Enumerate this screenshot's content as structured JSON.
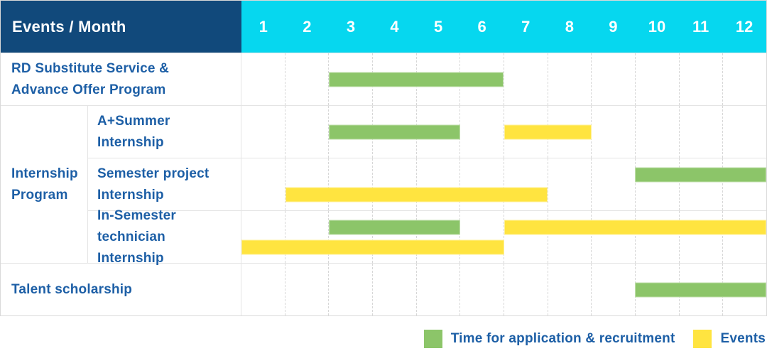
{
  "header": {
    "title": "Events / Month"
  },
  "months": [
    "1",
    "2",
    "3",
    "4",
    "5",
    "6",
    "7",
    "8",
    "9",
    "10",
    "11",
    "12"
  ],
  "colors": {
    "header_bg": "#11497B",
    "months_bg": "#06D7EF",
    "label_text": "#1D5FA6",
    "application_bar": "#8CC569",
    "events_bar": "#FFE440"
  },
  "groups": [
    {
      "id": "internship-program",
      "label_lines": [
        "Internship",
        "Program"
      ]
    }
  ],
  "rows": [
    {
      "id": "rd-substitute-advance-offer",
      "group": null,
      "label_lines": [
        "RD Substitute Service &",
        "Advance Offer Program"
      ],
      "bars": [
        {
          "type": "application",
          "start": 3,
          "end": 6,
          "lane": "center"
        }
      ]
    },
    {
      "id": "a-plus-summer-internship",
      "group": "internship-program",
      "label_lines": [
        "A+Summer",
        "Internship"
      ],
      "bars": [
        {
          "type": "application",
          "start": 3,
          "end": 5,
          "lane": "center"
        },
        {
          "type": "events",
          "start": 7,
          "end": 8,
          "lane": "center"
        }
      ]
    },
    {
      "id": "semester-project-internship",
      "group": "internship-program",
      "label_lines": [
        "Semester project",
        "Internship"
      ],
      "bars": [
        {
          "type": "application",
          "start": 10,
          "end": 12,
          "lane": "top"
        },
        {
          "type": "events",
          "start": 2,
          "end": 7,
          "lane": "bottom"
        }
      ]
    },
    {
      "id": "in-semester-technician-internship",
      "group": "internship-program",
      "label_lines": [
        "In-Semester",
        "technician Internship"
      ],
      "bars": [
        {
          "type": "application",
          "start": 3,
          "end": 5,
          "lane": "top"
        },
        {
          "type": "events",
          "start": 7,
          "end": 12,
          "lane": "top"
        },
        {
          "type": "events",
          "start": 1,
          "end": 6,
          "lane": "bottom"
        }
      ]
    },
    {
      "id": "talent-scholarship",
      "group": null,
      "label_lines": [
        "Talent scholarship"
      ],
      "bars": [
        {
          "type": "application",
          "start": 10,
          "end": 12,
          "lane": "center"
        }
      ]
    }
  ],
  "legend": [
    {
      "key": "application",
      "label": "Time for application & recruitment",
      "color": "#8CC569"
    },
    {
      "key": "events",
      "label": "Events",
      "color": "#FFE440"
    }
  ],
  "chart_data": {
    "type": "bar",
    "subtype": "gantt-timeline",
    "title": "Events / Month",
    "x": {
      "label": "Month",
      "ticks": [
        1,
        2,
        3,
        4,
        5,
        6,
        7,
        8,
        9,
        10,
        11,
        12
      ],
      "range": [
        1,
        12
      ]
    },
    "grid": "dashed-vertical-month-lines",
    "legend_position": "bottom-right",
    "series_meaning": "inclusive month ranges [start_month, end_month]",
    "rows": [
      {
        "event": "RD Substitute Service & Advance Offer Program",
        "time_for_application_and_recruitment": [
          [
            3,
            6
          ]
        ],
        "events": []
      },
      {
        "event": "Internship Program - A+Summer Internship",
        "time_for_application_and_recruitment": [
          [
            3,
            5
          ]
        ],
        "events": [
          [
            7,
            8
          ]
        ]
      },
      {
        "event": "Internship Program - Semester project Internship",
        "time_for_application_and_recruitment": [
          [
            10,
            12
          ]
        ],
        "events": [
          [
            2,
            7
          ]
        ]
      },
      {
        "event": "Internship Program - In-Semester technician Internship",
        "time_for_application_and_recruitment": [
          [
            3,
            5
          ]
        ],
        "events": [
          [
            1,
            6
          ],
          [
            7,
            12
          ]
        ]
      },
      {
        "event": "Talent scholarship",
        "time_for_application_and_recruitment": [
          [
            10,
            12
          ]
        ],
        "events": []
      }
    ],
    "legend": [
      "Time for application & recruitment",
      "Events"
    ]
  }
}
